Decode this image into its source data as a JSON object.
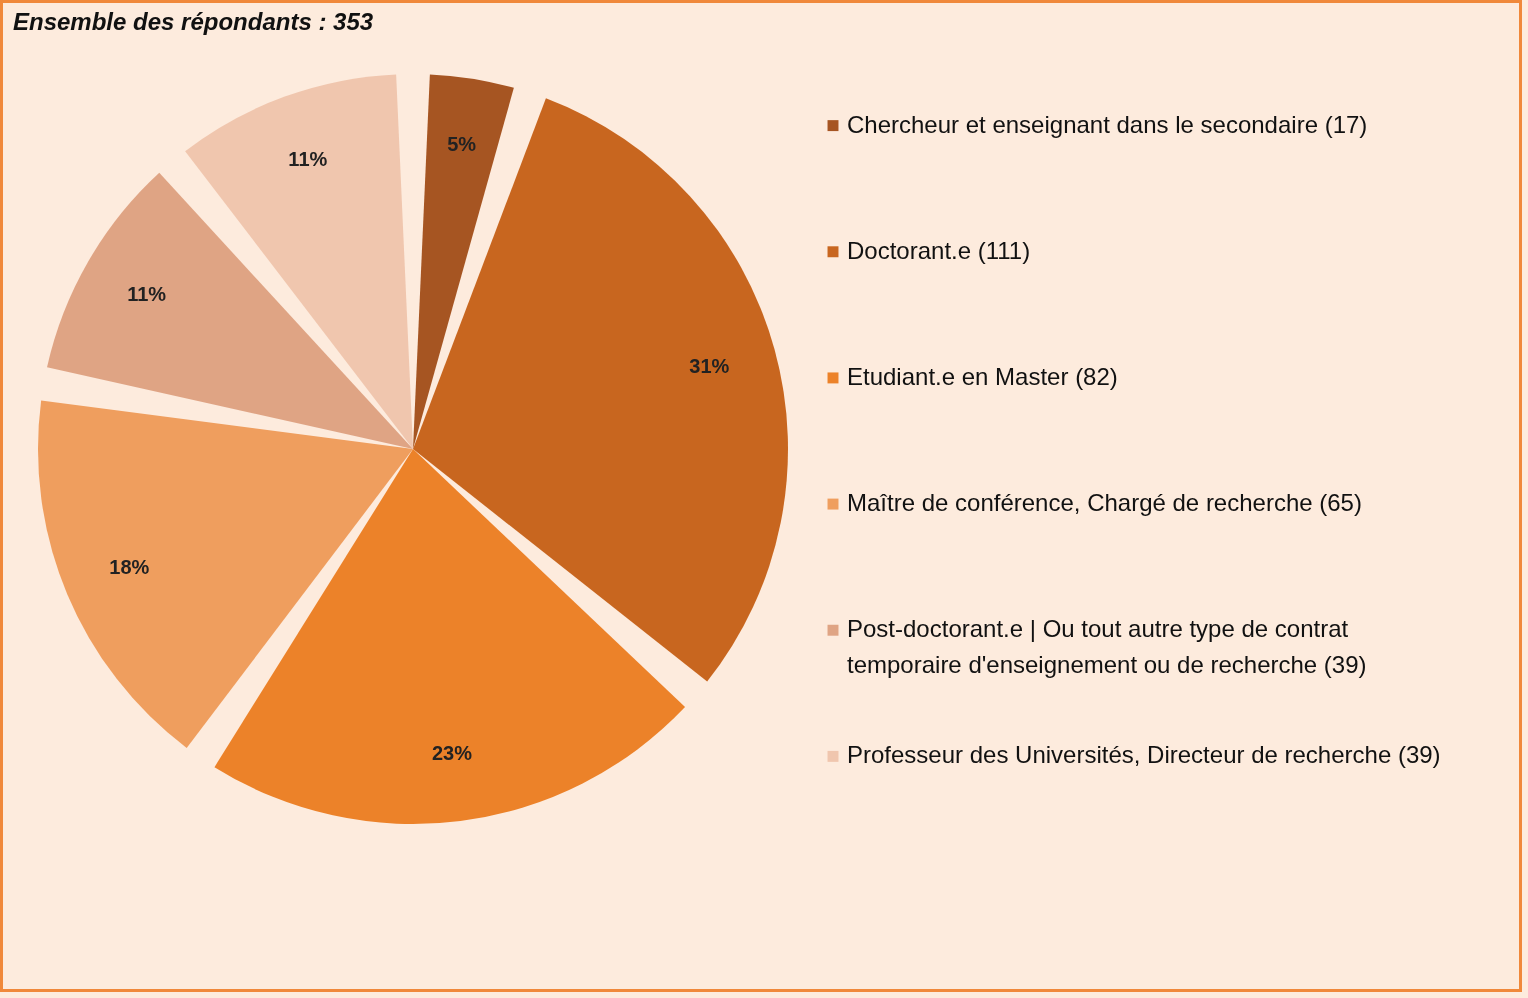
{
  "chart_data": {
    "type": "pie",
    "title": "Ensemble des répondants : 353",
    "categories": [
      "Chercheur et enseignant dans le secondaire (17)",
      "Doctorant.e (111)",
      "Etudiant.e en Master (82)",
      "Maître de conférence, Chargé de recherche (65)",
      "Post-doctorant.e  | Ou tout autre type de contrat temporaire d'enseignement ou de recherche (39)",
      "Professeur des Universités, Directeur de recherche (39)"
    ],
    "values": [
      5,
      31,
      23,
      18,
      11,
      11
    ],
    "colors": [
      "#a65522",
      "#c8661f",
      "#ec8229",
      "#ef9e5e",
      "#dfa484",
      "#f0c6ae"
    ],
    "value_labels": [
      "5%",
      "31%",
      "23%",
      "18%",
      "11%",
      "11%"
    ],
    "legend": "right"
  }
}
